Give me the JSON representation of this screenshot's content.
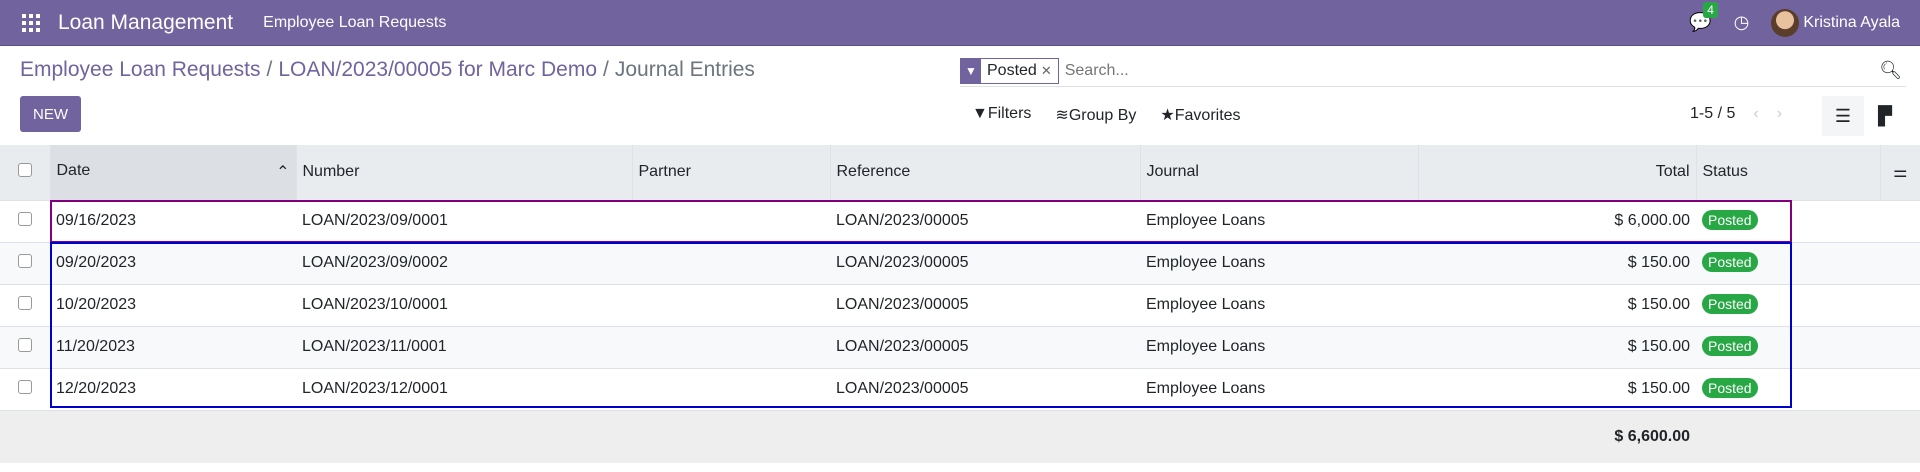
{
  "navbar": {
    "app": "Loan Management",
    "menu": "Employee Loan Requests",
    "chat_count": "4",
    "user": "Kristina Ayala"
  },
  "breadcrumb": {
    "items": [
      "Employee Loan Requests",
      "LOAN/2023/00005 for Marc Demo"
    ],
    "current": "Journal Entries"
  },
  "new_label": "NEW",
  "search": {
    "facet": "Posted",
    "placeholder": "Search..."
  },
  "tools": {
    "filters": "Filters",
    "group_by": "Group By",
    "favorites": "Favorites"
  },
  "pager": "1-5 / 5",
  "columns": [
    "Date",
    "Number",
    "Partner",
    "Reference",
    "Journal",
    "Total",
    "Status"
  ],
  "rows": [
    {
      "date": "09/16/2023",
      "number": "LOAN/2023/09/0001",
      "partner": "",
      "reference": "LOAN/2023/00005",
      "journal": "Employee Loans",
      "total": "$ 6,000.00",
      "status": "Posted"
    },
    {
      "date": "09/20/2023",
      "number": "LOAN/2023/09/0002",
      "partner": "",
      "reference": "LOAN/2023/00005",
      "journal": "Employee Loans",
      "total": "$ 150.00",
      "status": "Posted"
    },
    {
      "date": "10/20/2023",
      "number": "LOAN/2023/10/0001",
      "partner": "",
      "reference": "LOAN/2023/00005",
      "journal": "Employee Loans",
      "total": "$ 150.00",
      "status": "Posted"
    },
    {
      "date": "11/20/2023",
      "number": "LOAN/2023/11/0001",
      "partner": "",
      "reference": "LOAN/2023/00005",
      "journal": "Employee Loans",
      "total": "$ 150.00",
      "status": "Posted"
    },
    {
      "date": "12/20/2023",
      "number": "LOAN/2023/12/0001",
      "partner": "",
      "reference": "LOAN/2023/00005",
      "journal": "Employee Loans",
      "total": "$ 150.00",
      "status": "Posted"
    }
  ],
  "footer_total": "$ 6,600.00",
  "colors": {
    "brand": "#71639e",
    "posted": "#28a745"
  }
}
